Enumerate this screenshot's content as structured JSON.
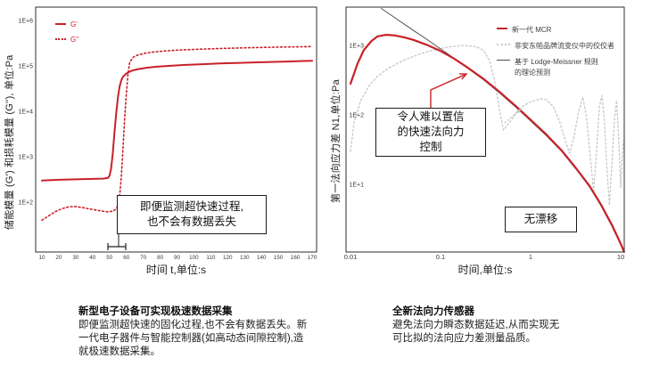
{
  "colors": {
    "red": "#c92128",
    "competitor": "#c9c9c9",
    "theory": "#4d4d4d",
    "frame": "#2e2e2e",
    "tick_text": "#3a3a3a"
  },
  "chart_data": [
    {
      "id": "modulus-vs-time",
      "type": "line",
      "xlabel": "时间 t,单位:s",
      "ylabel": "储能模量 (G') 和损耗模量 (G''), 单位:Pa",
      "x_scale": "linear",
      "y_scale": "log",
      "xlim": [
        10,
        170
      ],
      "ylim": [
        10,
        2000000
      ],
      "grid": false,
      "legend_position": "top-left",
      "x_ticks": [
        {
          "label": "10",
          "value": 10
        },
        {
          "label": "20",
          "value": 20
        },
        {
          "label": "30",
          "value": 30
        },
        {
          "label": "40",
          "value": 40
        },
        {
          "label": "50",
          "value": 50
        },
        {
          "label": "60",
          "value": 60
        },
        {
          "label": "70",
          "value": 70
        },
        {
          "label": "80",
          "value": 80
        },
        {
          "label": "90",
          "value": 90
        },
        {
          "label": "100",
          "value": 100
        },
        {
          "label": "110",
          "value": 110
        },
        {
          "label": "120",
          "value": 120
        },
        {
          "label": "130",
          "value": 130
        },
        {
          "label": "140",
          "value": 140
        },
        {
          "label": "150",
          "value": 150
        },
        {
          "label": "160",
          "value": 160
        },
        {
          "label": "170",
          "value": 170
        }
      ],
      "y_ticks": [
        {
          "label": "1E+2",
          "value": 100
        },
        {
          "label": "1E+3",
          "value": 1000
        },
        {
          "label": "1E+4",
          "value": 10000
        },
        {
          "label": "1E+5",
          "value": 100000
        },
        {
          "label": "1E+6",
          "value": 1000000
        }
      ],
      "series": [
        {
          "key": "g-prime-curve",
          "name": "G'",
          "style": "solid",
          "color_key": "red",
          "width": 2,
          "z": 1,
          "points": [
            [
              10,
              300
            ],
            [
              20,
              310
            ],
            [
              30,
              318
            ],
            [
              40,
              325
            ],
            [
              46,
              330
            ],
            [
              49,
              340
            ],
            [
              50,
              380
            ],
            [
              51,
              550
            ],
            [
              52,
              1200
            ],
            [
              53,
              3500
            ],
            [
              54,
              9000
            ],
            [
              55,
              20000
            ],
            [
              56,
              35000
            ],
            [
              57,
              48000
            ],
            [
              58,
              58000
            ],
            [
              60,
              68000
            ],
            [
              63,
              78000
            ],
            [
              67,
              85000
            ],
            [
              72,
              91000
            ],
            [
              78,
              96000
            ],
            [
              85,
              100000
            ],
            [
              95,
              105000
            ],
            [
              105,
              109000
            ],
            [
              115,
              113000
            ],
            [
              125,
              116000
            ],
            [
              135,
              119000
            ],
            [
              145,
              122000
            ],
            [
              155,
              125000
            ],
            [
              165,
              128000
            ],
            [
              170,
              129500
            ]
          ]
        },
        {
          "key": "g-double-prime-curve",
          "name": "G''",
          "style": "dotted",
          "color_key": "red",
          "width": 1.6,
          "z": 0,
          "points": [
            [
              10,
              40
            ],
            [
              14,
              50
            ],
            [
              18,
              62
            ],
            [
              22,
              72
            ],
            [
              26,
              79
            ],
            [
              30,
              80
            ],
            [
              34,
              76
            ],
            [
              38,
              71
            ],
            [
              42,
              67
            ],
            [
              46,
              63
            ],
            [
              49,
              61
            ],
            [
              52,
              63
            ],
            [
              54,
              70
            ],
            [
              55,
              85
            ],
            [
              56,
              130
            ],
            [
              57,
              350
            ],
            [
              58,
              1500
            ],
            [
              59,
              7000
            ],
            [
              60,
              25000
            ],
            [
              61,
              70000
            ],
            [
              62,
              120000
            ],
            [
              64,
              155000
            ],
            [
              67,
              175000
            ],
            [
              71,
              190000
            ],
            [
              76,
              202000
            ],
            [
              82,
              212000
            ],
            [
              90,
              222000
            ],
            [
              100,
              231000
            ],
            [
              110,
              238000
            ],
            [
              120,
              244000
            ],
            [
              130,
              250000
            ],
            [
              140,
              255000
            ],
            [
              150,
              259000
            ],
            [
              160,
              263000
            ],
            [
              170,
              266000
            ]
          ]
        }
      ],
      "annotation": {
        "box_text": "即便监测超快速过程,\n也不会有数据丢失"
      }
    },
    {
      "id": "normal-stress-difference-vs-time",
      "type": "line",
      "xlabel": "时间,单位:s",
      "ylabel": "第一法向应力差 N1,单位:Pa",
      "x_scale": "log",
      "y_scale": "log",
      "xlim": [
        0.01,
        11
      ],
      "ylim": [
        1,
        3500
      ],
      "grid": false,
      "legend_position": "top-right",
      "x_ticks": [
        {
          "label": "0.01",
          "value": 0.01
        },
        {
          "label": "0.1",
          "value": 0.1
        },
        {
          "label": "1",
          "value": 1
        },
        {
          "label": "10",
          "value": 10
        }
      ],
      "y_ticks": [
        {
          "label": "1E+1",
          "value": 10
        },
        {
          "label": "1E+2",
          "value": 100
        },
        {
          "label": "1E+3",
          "value": 1000
        }
      ],
      "series": [
        {
          "key": "mcr-curve",
          "name": "新一代 MCR",
          "style": "solid",
          "color_key": "red",
          "width": 2.2,
          "z": 2,
          "points": [
            [
              0.01,
              280
            ],
            [
              0.012,
              550
            ],
            [
              0.014,
              850
            ],
            [
              0.017,
              1150
            ],
            [
              0.02,
              1350
            ],
            [
              0.025,
              1420
            ],
            [
              0.03,
              1400
            ],
            [
              0.04,
              1300
            ],
            [
              0.05,
              1200
            ],
            [
              0.07,
              1020
            ],
            [
              0.1,
              830
            ],
            [
              0.14,
              650
            ],
            [
              0.2,
              480
            ],
            [
              0.3,
              330
            ],
            [
              0.45,
              215
            ],
            [
              0.7,
              130
            ],
            [
              1,
              85
            ],
            [
              1.5,
              52
            ],
            [
              2.2,
              31
            ],
            [
              3.2,
              17
            ],
            [
              4.5,
              9.5
            ],
            [
              6,
              5.2
            ],
            [
              8,
              2.6
            ],
            [
              10,
              1.4
            ],
            [
              10.9,
              1.07
            ]
          ]
        },
        {
          "key": "competitor-curve",
          "name": "非安东帕品牌流变仪中的佼佼者",
          "style": "dotted",
          "color_key": "competitor",
          "width": 1.4,
          "z": 0,
          "points": [
            [
              0.01,
              30
            ],
            [
              0.011,
              80
            ],
            [
              0.013,
              160
            ],
            [
              0.016,
              260
            ],
            [
              0.02,
              360
            ],
            [
              0.027,
              480
            ],
            [
              0.04,
              620
            ],
            [
              0.06,
              760
            ],
            [
              0.09,
              880
            ],
            [
              0.13,
              960
            ],
            [
              0.18,
              1000
            ],
            [
              0.25,
              960
            ],
            [
              0.3,
              850
            ],
            [
              0.35,
              600
            ],
            [
              0.4,
              300
            ],
            [
              0.45,
              120
            ],
            [
              0.5,
              60
            ],
            [
              0.57,
              75
            ],
            [
              0.65,
              95
            ],
            [
              0.8,
              130
            ],
            [
              1,
              155
            ],
            [
              1.3,
              170
            ],
            [
              1.5,
              165
            ],
            [
              1.8,
              130
            ],
            [
              2.1,
              80
            ],
            [
              2.4,
              45
            ],
            [
              2.7,
              28
            ],
            [
              3,
              45
            ],
            [
              3.4,
              110
            ],
            [
              3.8,
              180
            ],
            [
              4.2,
              90
            ],
            [
              4.6,
              25
            ],
            [
              5,
              8
            ],
            [
              5.4,
              30
            ],
            [
              5.8,
              130
            ],
            [
              6.2,
              190
            ],
            [
              6.6,
              80
            ],
            [
              7,
              18
            ],
            [
              7.5,
              5
            ],
            [
              8,
              20
            ],
            [
              8.5,
              80
            ],
            [
              9,
              160
            ],
            [
              9.5,
              45
            ],
            [
              10,
              9
            ],
            [
              10.5,
              30
            ],
            [
              10.9,
              45
            ]
          ]
        },
        {
          "key": "theory-curve",
          "name": "基于 Lodge-Meissner 规则\n的理论预测",
          "style": "solid",
          "color_key": "theory",
          "width": 1,
          "z": 1,
          "points": [
            [
              0.022,
              3400
            ],
            [
              0.035,
              2250
            ],
            [
              0.05,
              1640
            ],
            [
              0.07,
              1230
            ],
            [
              0.1,
              890
            ],
            [
              0.14,
              660
            ],
            [
              0.2,
              470
            ],
            [
              0.3,
              320
            ],
            [
              0.45,
              208
            ],
            [
              0.7,
              126
            ],
            [
              1,
              82
            ],
            [
              1.5,
              50
            ],
            [
              2.2,
              30
            ],
            [
              3.2,
              16.5
            ],
            [
              4.5,
              9.2
            ],
            [
              6,
              5
            ],
            [
              8,
              2.5
            ],
            [
              10,
              1.35
            ],
            [
              10.9,
              1.05
            ]
          ]
        }
      ],
      "annotations": {
        "control_box": "令人难以置信\n的快速法向力\n控制",
        "no_drift": "无漂移"
      }
    }
  ],
  "captions": {
    "left": {
      "title": "新型电子设备可实现极速数据采集",
      "body": "即便监测超快速的固化过程,也不会有数据丢失。新一代电子器件与智能控制器(如高动态间隙控制),造就极速数据采集。"
    },
    "right": {
      "title": "全新法向力传感器",
      "body": "避免法向力瞬态数据延迟,从而实现无可比拟的法向应力差测量品质。"
    }
  }
}
